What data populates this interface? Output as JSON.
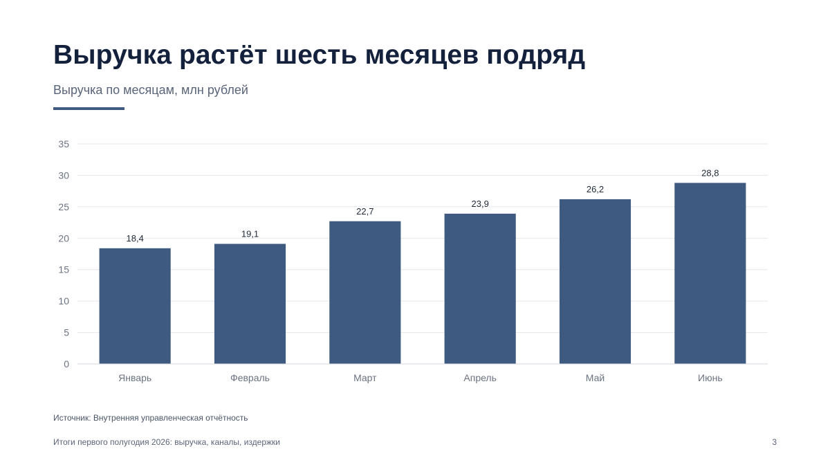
{
  "slide": {
    "title": "Выручка растёт шесть месяцев подряд",
    "subtitle": "Выручка по месяцам, млн рублей",
    "source": "Источник: Внутренняя управленческая отчётность",
    "footer": "Итоги первого полугодия 2026: выручка, каналы, издержки",
    "page_number": "3"
  },
  "colors": {
    "bar": "#3e5a80",
    "accent": "#3e5a80",
    "grid": "#e3e6ec",
    "axis": "#d3d7df",
    "tick_text": "#6b7280",
    "label_text": "#1f2937"
  },
  "chart_data": {
    "type": "bar",
    "categories": [
      "Январь",
      "Февраль",
      "Март",
      "Апрель",
      "Май",
      "Июнь"
    ],
    "values": [
      18.4,
      19.1,
      22.7,
      23.9,
      26.2,
      28.8
    ],
    "value_labels": [
      "18,4",
      "19,1",
      "22,7",
      "23,9",
      "26,2",
      "28,8"
    ],
    "y_ticks": [
      0,
      5,
      10,
      15,
      20,
      25,
      30,
      35
    ],
    "ylim": [
      0,
      35
    ],
    "grid": true,
    "legend": "none"
  }
}
